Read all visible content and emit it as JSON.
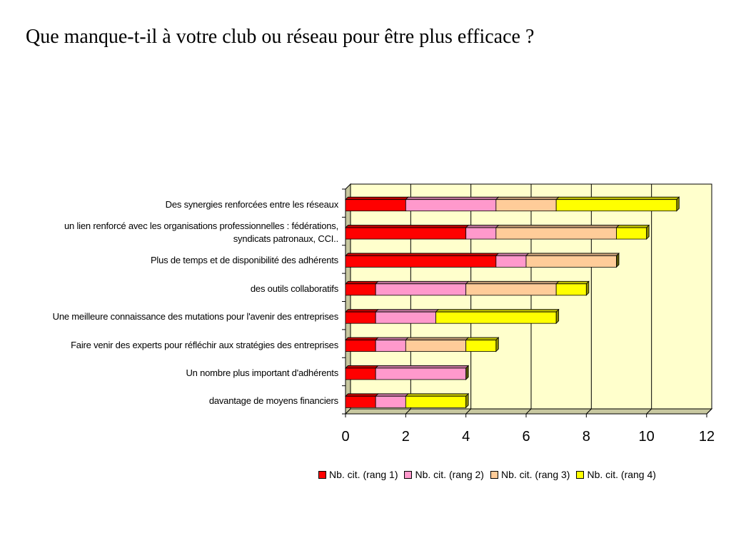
{
  "title": "Que manque-t-il à votre club ou réseau pour être plus efficace ?",
  "chart_data": {
    "type": "bar",
    "orientation": "horizontal",
    "stacked": true,
    "categories": [
      "Des synergies renforcées entre les réseaux",
      "un lien renforcé avec les organisations professionnelles : fédérations, syndicats patronaux, CCI..",
      "Plus de temps et de disponibilité des adhérents",
      "des outils collaboratifs",
      "Une meilleure connaissance des mutations pour l'avenir des entreprises",
      "Faire venir des experts pour réfléchir aux stratégies des entreprises",
      "Un nombre plus important d'adhérents",
      "davantage de moyens financiers"
    ],
    "category_lines": [
      [
        "Des synergies renforcées entre les réseaux"
      ],
      [
        "un lien renforcé avec les organisations professionnelles : fédérations,",
        "syndicats patronaux, CCI.."
      ],
      [
        "Plus de temps et de disponibilité des adhérents"
      ],
      [
        "des outils collaboratifs"
      ],
      [
        "Une meilleure connaissance des mutations pour l'avenir des entreprises"
      ],
      [
        "Faire venir des experts pour réfléchir aux stratégies des entreprises"
      ],
      [
        "Un nombre plus important d'adhérents"
      ],
      [
        "davantage de moyens financiers"
      ]
    ],
    "series": [
      {
        "name": "Nb. cit. (rang 1)",
        "color": "#ff0000",
        "values": [
          2,
          4,
          5,
          1,
          1,
          1,
          1,
          1
        ]
      },
      {
        "name": "Nb. cit. (rang 2)",
        "color": "#ff99cc",
        "values": [
          3,
          1,
          1,
          3,
          2,
          1,
          3,
          1
        ]
      },
      {
        "name": "Nb. cit. (rang 3)",
        "color": "#ffcc99",
        "values": [
          2,
          4,
          3,
          3,
          0,
          2,
          0,
          0
        ]
      },
      {
        "name": "Nb. cit. (rang 4)",
        "color": "#ffff00",
        "values": [
          4,
          1,
          0,
          1,
          4,
          1,
          0,
          2
        ]
      }
    ],
    "xlim": [
      0,
      12
    ],
    "xticks": [
      "0",
      "2",
      "4",
      "6",
      "8",
      "10",
      "12"
    ],
    "grid": true,
    "legend_position": "bottom",
    "plot_background": "#ffffcc"
  }
}
